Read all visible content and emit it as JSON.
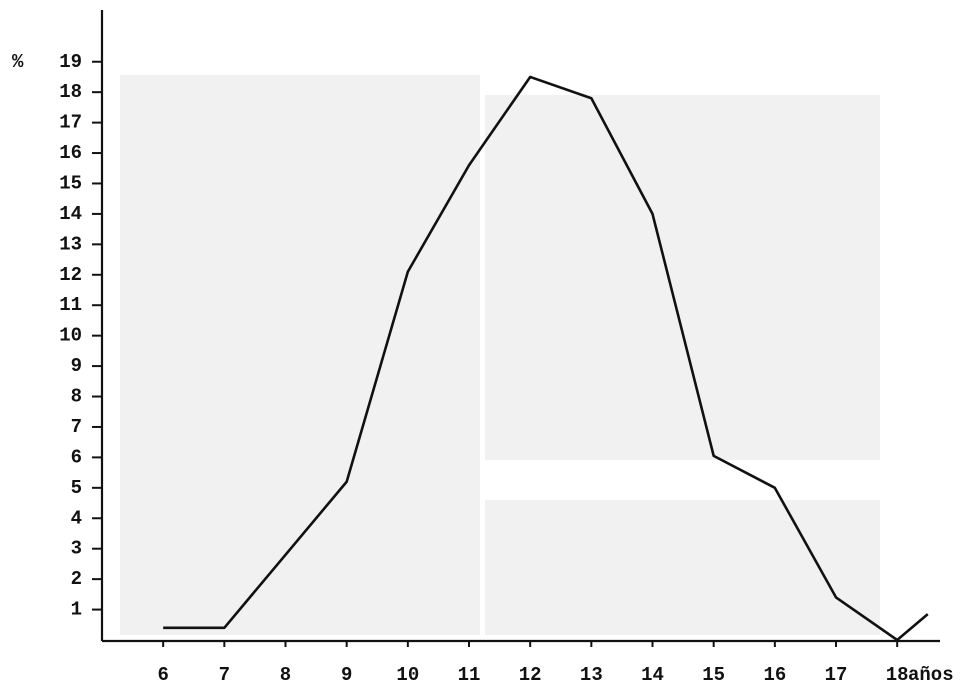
{
  "chart_data": {
    "type": "line",
    "x": [
      6,
      7,
      8,
      9,
      10,
      11,
      12,
      13,
      14,
      15,
      16,
      17,
      18,
      18.5
    ],
    "series": [
      {
        "color": "#111111",
        "values": [
          0.4,
          0.4,
          2.8,
          5.2,
          12.1,
          15.6,
          18.5,
          17.8,
          14.0,
          6.05,
          5.0,
          1.4,
          0,
          0.85
        ]
      }
    ],
    "ylabel": "%",
    "xlabel": "años",
    "xlim": [
      5,
      18.7
    ],
    "ylim": [
      0,
      20.7
    ],
    "xticks": [
      6,
      7,
      8,
      9,
      10,
      11,
      12,
      13,
      14,
      15,
      16,
      17,
      18
    ],
    "yticks": [
      1,
      2,
      3,
      4,
      5,
      6,
      7,
      8,
      9,
      10,
      11,
      12,
      13,
      14,
      15,
      16,
      17,
      18,
      19
    ]
  }
}
